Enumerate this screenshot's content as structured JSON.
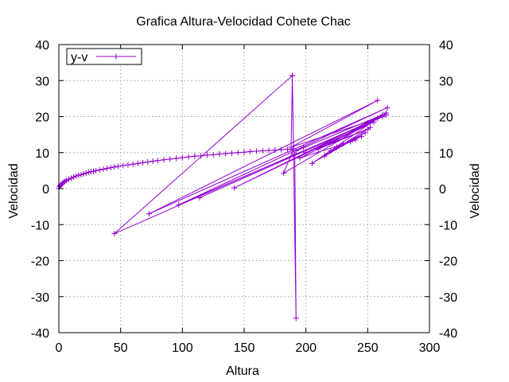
{
  "chart_data": {
    "type": "line",
    "title": "Grafica Altura-Velocidad Cohete Chac",
    "xlabel": "Altura",
    "ylabel": "Velocidad",
    "y2label": "Velocidad",
    "xlim": [
      0,
      300
    ],
    "ylim": [
      -40,
      40
    ],
    "xticks": [
      0,
      50,
      100,
      150,
      200,
      250,
      300
    ],
    "yticks": [
      -40,
      -30,
      -20,
      -10,
      0,
      10,
      20,
      30,
      40
    ],
    "grid": true,
    "legend_position": "top-left",
    "series": [
      {
        "name": "y-v",
        "color": "#9400d3",
        "marker": "plus",
        "points": [
          [
            0,
            0
          ],
          [
            0.5,
            0.5
          ],
          [
            1,
            0.8
          ],
          [
            1.5,
            1.0
          ],
          [
            2,
            1.2
          ],
          [
            3,
            1.5
          ],
          [
            4,
            1.8
          ],
          [
            5,
            2.0
          ],
          [
            6,
            2.3
          ],
          [
            8,
            2.6
          ],
          [
            10,
            2.9
          ],
          [
            12,
            3.2
          ],
          [
            14,
            3.5
          ],
          [
            16,
            3.7
          ],
          [
            18,
            3.9
          ],
          [
            20,
            4.1
          ],
          [
            22,
            4.3
          ],
          [
            24,
            4.5
          ],
          [
            26,
            4.7
          ],
          [
            28,
            4.8
          ],
          [
            30,
            5.0
          ],
          [
            33,
            5.2
          ],
          [
            36,
            5.4
          ],
          [
            39,
            5.6
          ],
          [
            42,
            5.8
          ],
          [
            45,
            6.0
          ],
          [
            48,
            6.2
          ],
          [
            52,
            6.4
          ],
          [
            56,
            6.6
          ],
          [
            60,
            6.8
          ],
          [
            64,
            7.0
          ],
          [
            68,
            7.2
          ],
          [
            72,
            7.4
          ],
          [
            76,
            7.6
          ],
          [
            80,
            7.8
          ],
          [
            85,
            8.0
          ],
          [
            90,
            8.2
          ],
          [
            95,
            8.4
          ],
          [
            100,
            8.6
          ],
          [
            105,
            8.8
          ],
          [
            110,
            9.0
          ],
          [
            115,
            9.1
          ],
          [
            120,
            9.3
          ],
          [
            125,
            9.4
          ],
          [
            130,
            9.6
          ],
          [
            135,
            9.7
          ],
          [
            140,
            9.9
          ],
          [
            145,
            10.0
          ],
          [
            150,
            10.1
          ],
          [
            155,
            10.3
          ],
          [
            160,
            10.4
          ],
          [
            165,
            10.5
          ],
          [
            170,
            10.6
          ],
          [
            175,
            10.7
          ],
          [
            180,
            10.8
          ],
          [
            185,
            10.9
          ],
          [
            188,
            11.0
          ],
          [
            189,
            31.4
          ],
          [
            192,
            -36.0
          ],
          [
            191,
            9.5
          ],
          [
            45,
            -12.5
          ],
          [
            189,
            31.4
          ],
          [
            190,
            11.0
          ],
          [
            182,
            4.3
          ],
          [
            265,
            21.0
          ],
          [
            142,
            0.2
          ],
          [
            265,
            20.5
          ],
          [
            114,
            -2.5
          ],
          [
            262,
            20.0
          ],
          [
            97,
            -4.5
          ],
          [
            266,
            22.5
          ],
          [
            73,
            -7.0
          ],
          [
            258,
            24.5
          ],
          [
            188,
            11.5
          ],
          [
            258,
            19.5
          ],
          [
            205,
            7.0
          ],
          [
            252,
            17.0
          ],
          [
            215,
            9.0
          ],
          [
            248,
            15.5
          ],
          [
            220,
            10.5
          ],
          [
            245,
            14.5
          ],
          [
            225,
            11.5
          ],
          [
            240,
            13.5
          ],
          [
            230,
            12.5
          ],
          [
            236,
            13.0
          ],
          [
            195,
            8.5
          ],
          [
            255,
            18.5
          ],
          [
            200,
            10.0
          ],
          [
            250,
            16.5
          ],
          [
            210,
            11.0
          ],
          [
            262,
            20.5
          ],
          [
            192,
            10.5
          ],
          [
            198,
            11.5
          ]
        ]
      }
    ]
  }
}
